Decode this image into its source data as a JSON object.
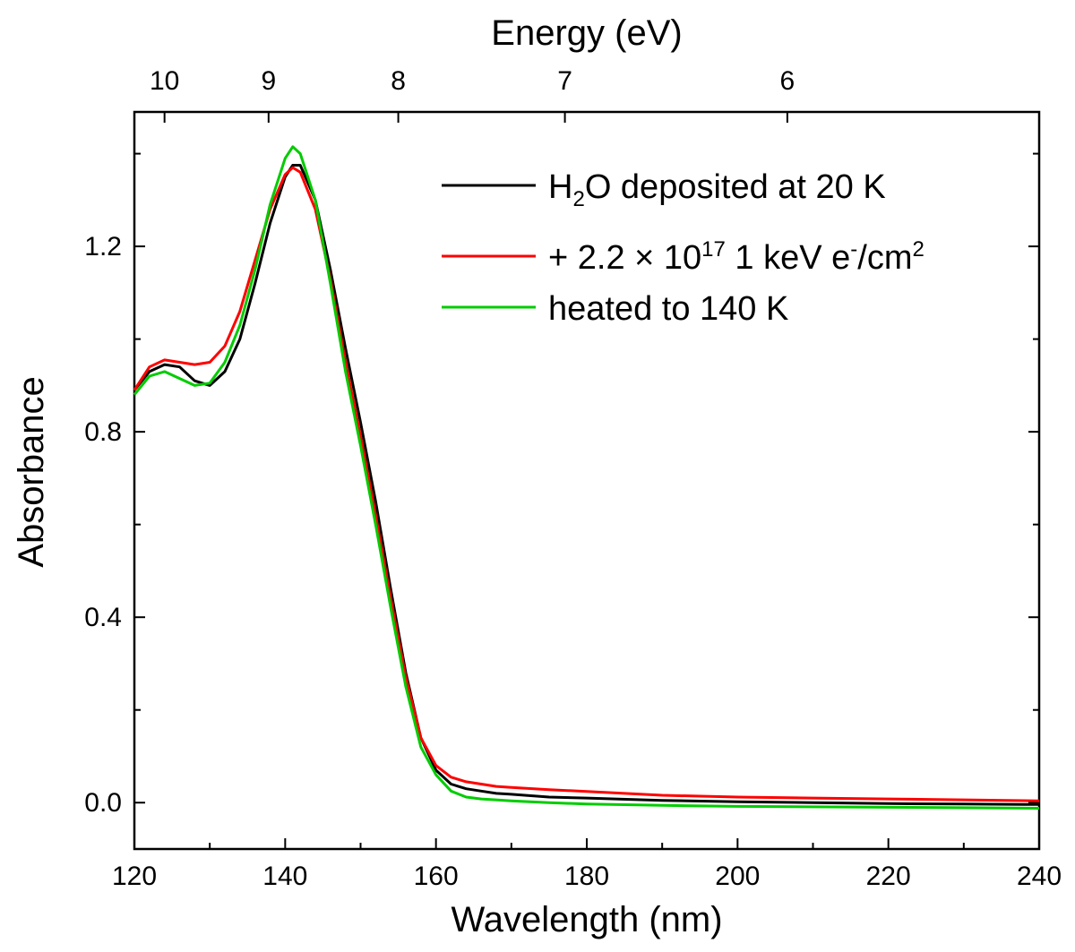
{
  "chart_data": {
    "type": "line",
    "xlabel": "Wavelength (nm)",
    "ylabel": "Absorbance",
    "top_axis": {
      "label": "Energy (eV)",
      "ticks": [
        {
          "label": "10",
          "wavelength_nm": 124.0
        },
        {
          "label": "9",
          "wavelength_nm": 137.8
        },
        {
          "label": "8",
          "wavelength_nm": 155.0
        },
        {
          "label": "7",
          "wavelength_nm": 177.1
        },
        {
          "label": "6",
          "wavelength_nm": 206.6
        }
      ]
    },
    "xlim": [
      120,
      240
    ],
    "ylim": [
      -0.1,
      1.49
    ],
    "x_ticks": [
      120,
      140,
      160,
      180,
      200,
      220,
      240
    ],
    "x_tick_labels": [
      "120",
      "140",
      "160",
      "180",
      "200",
      "220",
      "240"
    ],
    "y_ticks": [
      0.0,
      0.4,
      0.8,
      1.2
    ],
    "y_tick_labels": [
      "0.0",
      "0.4",
      "0.8",
      "1.2"
    ],
    "legend_position": "top-right",
    "series": [
      {
        "name": "H2O deposited at 20 K",
        "color": "#000000",
        "x": [
          120,
          122,
          124,
          126,
          128,
          130,
          132,
          134,
          136,
          138,
          140,
          141,
          142,
          144,
          146,
          148,
          150,
          152,
          154,
          156,
          158,
          160,
          162,
          164,
          166,
          168,
          170,
          175,
          180,
          190,
          200,
          210,
          220,
          230,
          240
        ],
        "y": [
          0.89,
          0.93,
          0.945,
          0.94,
          0.91,
          0.9,
          0.93,
          1.0,
          1.12,
          1.25,
          1.35,
          1.375,
          1.375,
          1.3,
          1.15,
          0.98,
          0.82,
          0.65,
          0.46,
          0.28,
          0.14,
          0.07,
          0.04,
          0.03,
          0.025,
          0.02,
          0.018,
          0.012,
          0.01,
          0.005,
          0.002,
          0.0,
          -0.002,
          -0.003,
          -0.004
        ]
      },
      {
        "name": "+ 2.2 × 10^17 1 keV e-/cm2",
        "color": "#ff0000",
        "x": [
          120,
          122,
          124,
          126,
          128,
          130,
          132,
          134,
          136,
          138,
          140,
          141,
          142,
          144,
          146,
          148,
          150,
          152,
          154,
          156,
          158,
          160,
          162,
          164,
          166,
          168,
          170,
          175,
          180,
          190,
          200,
          210,
          220,
          230,
          240
        ],
        "y": [
          0.89,
          0.94,
          0.955,
          0.95,
          0.945,
          0.95,
          0.985,
          1.06,
          1.17,
          1.28,
          1.355,
          1.37,
          1.36,
          1.28,
          1.13,
          0.95,
          0.79,
          0.62,
          0.44,
          0.27,
          0.14,
          0.08,
          0.055,
          0.045,
          0.04,
          0.035,
          0.033,
          0.028,
          0.024,
          0.016,
          0.012,
          0.01,
          0.008,
          0.006,
          0.004
        ]
      },
      {
        "name": "heated to 140 K",
        "color": "#00cc00",
        "x": [
          120,
          122,
          124,
          126,
          128,
          130,
          132,
          134,
          136,
          138,
          140,
          141,
          142,
          144,
          146,
          148,
          150,
          152,
          154,
          156,
          158,
          160,
          162,
          164,
          166,
          168,
          170,
          175,
          180,
          190,
          200,
          210,
          220,
          230,
          240
        ],
        "y": [
          0.88,
          0.92,
          0.93,
          0.915,
          0.9,
          0.905,
          0.95,
          1.03,
          1.15,
          1.29,
          1.39,
          1.415,
          1.4,
          1.3,
          1.12,
          0.93,
          0.77,
          0.6,
          0.42,
          0.25,
          0.12,
          0.06,
          0.025,
          0.012,
          0.008,
          0.006,
          0.004,
          0.0,
          -0.003,
          -0.006,
          -0.008,
          -0.009,
          -0.01,
          -0.011,
          -0.012
        ]
      }
    ],
    "legend": {
      "entry1": {
        "main": "H",
        "sub": "2",
        "rest": "O deposited at 20 K"
      },
      "entry2": {
        "pre": "+ 2.2 × 10",
        "sup1": "17",
        "mid": " 1 keV e",
        "sup2": "-",
        "slash": "/cm",
        "sup3": "2"
      },
      "entry3": {
        "text": "heated to 140 K"
      }
    }
  }
}
